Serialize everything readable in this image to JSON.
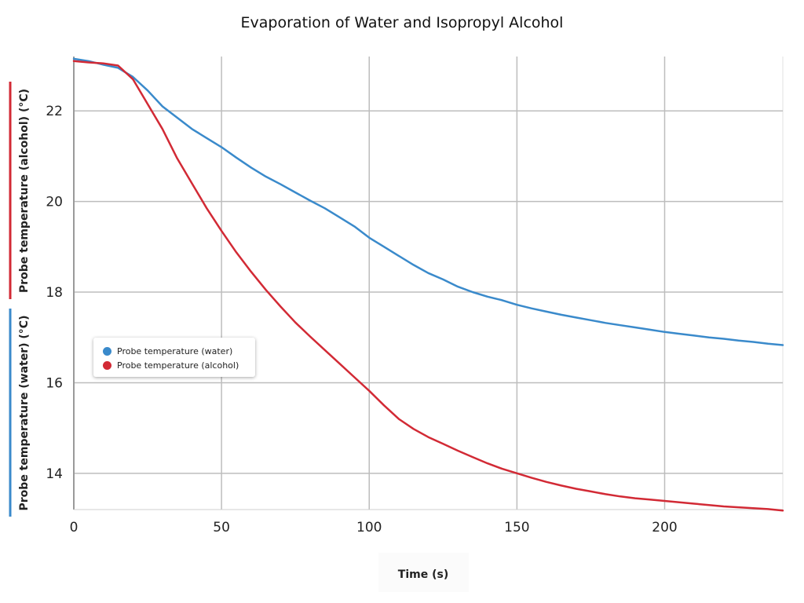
{
  "chart_data": {
    "type": "line",
    "title": "Evaporation of Water and Isopropyl Alcohol",
    "xlabel": "Time (s)",
    "ylabel_alcohol": "Probe temperature (alcohol)  (°C)",
    "ylabel_water": "Probe temperature (water)  (°C)",
    "xlim": [
      0,
      240
    ],
    "ylim": [
      13.2,
      23.2
    ],
    "xticks": [
      "0",
      "50",
      "100",
      "150",
      "200"
    ],
    "xtick_values": [
      0,
      50,
      100,
      150,
      200
    ],
    "yticks": [
      "14",
      "16",
      "18",
      "20",
      "22"
    ],
    "ytick_values": [
      14,
      16,
      18,
      20,
      22
    ],
    "grid": true,
    "legend_position": "left-middle",
    "series": [
      {
        "name": "Probe temperature (water)",
        "color": "#3a8acb",
        "x": [
          0,
          5,
          10,
          15,
          20,
          25,
          30,
          35,
          40,
          45,
          50,
          55,
          60,
          65,
          70,
          75,
          80,
          85,
          90,
          95,
          100,
          105,
          110,
          115,
          120,
          125,
          130,
          135,
          140,
          145,
          150,
          155,
          160,
          165,
          170,
          175,
          180,
          185,
          190,
          195,
          200,
          205,
          210,
          215,
          220,
          225,
          230,
          235,
          240
        ],
        "values": [
          23.15,
          23.1,
          23.02,
          22.95,
          22.75,
          22.45,
          22.1,
          21.85,
          21.6,
          21.4,
          21.2,
          20.97,
          20.75,
          20.55,
          20.38,
          20.2,
          20.02,
          19.85,
          19.65,
          19.45,
          19.2,
          19.0,
          18.8,
          18.6,
          18.42,
          18.28,
          18.12,
          18.0,
          17.9,
          17.82,
          17.72,
          17.64,
          17.57,
          17.5,
          17.44,
          17.38,
          17.32,
          17.27,
          17.22,
          17.17,
          17.12,
          17.08,
          17.04,
          17.0,
          16.97,
          16.93,
          16.9,
          16.86,
          16.83
        ]
      },
      {
        "name": "Probe temperature (alcohol)",
        "color": "#d22a35",
        "x": [
          0,
          5,
          10,
          15,
          20,
          25,
          30,
          35,
          40,
          45,
          50,
          55,
          60,
          65,
          70,
          75,
          80,
          85,
          90,
          95,
          100,
          105,
          110,
          115,
          120,
          125,
          130,
          135,
          140,
          145,
          150,
          155,
          160,
          165,
          170,
          175,
          180,
          185,
          190,
          195,
          200,
          205,
          210,
          215,
          220,
          225,
          230,
          235,
          240
        ],
        "values": [
          23.1,
          23.07,
          23.05,
          23.0,
          22.7,
          22.15,
          21.6,
          20.95,
          20.4,
          19.85,
          19.35,
          18.88,
          18.45,
          18.05,
          17.68,
          17.33,
          17.02,
          16.72,
          16.42,
          16.12,
          15.82,
          15.5,
          15.2,
          14.98,
          14.8,
          14.65,
          14.5,
          14.36,
          14.22,
          14.1,
          14.0,
          13.9,
          13.81,
          13.73,
          13.66,
          13.6,
          13.54,
          13.49,
          13.45,
          13.42,
          13.39,
          13.36,
          13.33,
          13.3,
          13.27,
          13.25,
          13.23,
          13.21,
          13.18
        ]
      }
    ]
  }
}
